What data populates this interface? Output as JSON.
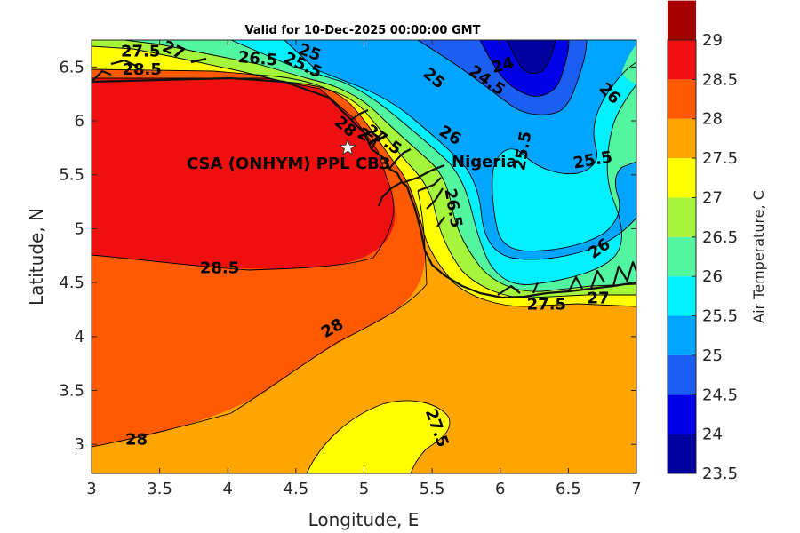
{
  "title": "Valid for 10-Dec-2025 00:00:00 GMT",
  "xlabel": "Longitude, E",
  "ylabel": "Latitude, N",
  "colorbar_label": "Air Temperature, C",
  "annotations": {
    "site": "CSA (ONHYM) PPL CB3",
    "country": "Nigeria"
  },
  "map": {
    "xlim": [
      3,
      7
    ],
    "ylim": [
      2.73,
      6.75
    ],
    "xticks": [
      "3",
      "3.5",
      "4",
      "4.5",
      "5",
      "5.5",
      "6",
      "6.5",
      "7"
    ],
    "yticks": [
      "3",
      "3.5",
      "4",
      "4.5",
      "5",
      "5.5",
      "6",
      "6.5"
    ],
    "site_marker": {
      "lon": 4.88,
      "lat": 5.75
    },
    "contour_labels": [
      {
        "text": "27.5",
        "lon": 3.36,
        "lat": 6.64,
        "rot": 0
      },
      {
        "text": "28.5",
        "lon": 3.37,
        "lat": 6.47,
        "rot": 0
      },
      {
        "text": "27",
        "lon": 3.6,
        "lat": 6.65,
        "rot": 25
      },
      {
        "text": "26.5",
        "lon": 4.22,
        "lat": 6.57,
        "rot": 5
      },
      {
        "text": "25",
        "lon": 4.6,
        "lat": 6.63,
        "rot": 20
      },
      {
        "text": "25.5",
        "lon": 4.55,
        "lat": 6.51,
        "rot": 25
      },
      {
        "text": "24",
        "lon": 6.02,
        "lat": 6.51,
        "rot": -15
      },
      {
        "text": "24.5",
        "lon": 5.9,
        "lat": 6.37,
        "rot": 35
      },
      {
        "text": "25",
        "lon": 5.51,
        "lat": 6.39,
        "rot": 40
      },
      {
        "text": "26",
        "lon": 6.8,
        "lat": 6.25,
        "rot": 45
      },
      {
        "text": "28",
        "lon": 4.86,
        "lat": 5.94,
        "rot": 40
      },
      {
        "text": "27",
        "lon": 5.03,
        "lat": 5.84,
        "rot": 30
      },
      {
        "text": "27.5",
        "lon": 5.14,
        "lat": 5.82,
        "rot": 35
      },
      {
        "text": "26",
        "lon": 5.63,
        "lat": 5.86,
        "rot": 30
      },
      {
        "text": "25.5",
        "lon": 6.17,
        "lat": 5.72,
        "rot": -80
      },
      {
        "text": "25.5",
        "lon": 6.68,
        "lat": 5.63,
        "rot": -10
      },
      {
        "text": "26.5",
        "lon": 5.65,
        "lat": 5.19,
        "rot": 80
      },
      {
        "text": "26",
        "lon": 6.73,
        "lat": 4.81,
        "rot": -35
      },
      {
        "text": "28.5",
        "lon": 3.94,
        "lat": 4.63,
        "rot": 0
      },
      {
        "text": "27.5",
        "lon": 6.34,
        "lat": 4.29,
        "rot": 0
      },
      {
        "text": "27",
        "lon": 6.72,
        "lat": 4.35,
        "rot": 0
      },
      {
        "text": "28",
        "lon": 4.77,
        "lat": 4.07,
        "rot": -30
      },
      {
        "text": "28",
        "lon": 3.33,
        "lat": 3.04,
        "rot": 0
      },
      {
        "text": "27.5",
        "lon": 5.53,
        "lat": 3.15,
        "rot": 70
      }
    ]
  },
  "colorbar": {
    "ticks": [
      "23.5",
      "24",
      "24.5",
      "25",
      "25.5",
      "26",
      "26.5",
      "27",
      "27.5",
      "28",
      "28.5",
      "29"
    ],
    "colors": [
      "#00009e",
      "#0000e6",
      "#1a5ff2",
      "#00a5ff",
      "#00f0ff",
      "#52f5a0",
      "#a5f53c",
      "#ffff00",
      "#ffa500",
      "#ff5a00",
      "#ee1010",
      "#a70000"
    ]
  }
}
